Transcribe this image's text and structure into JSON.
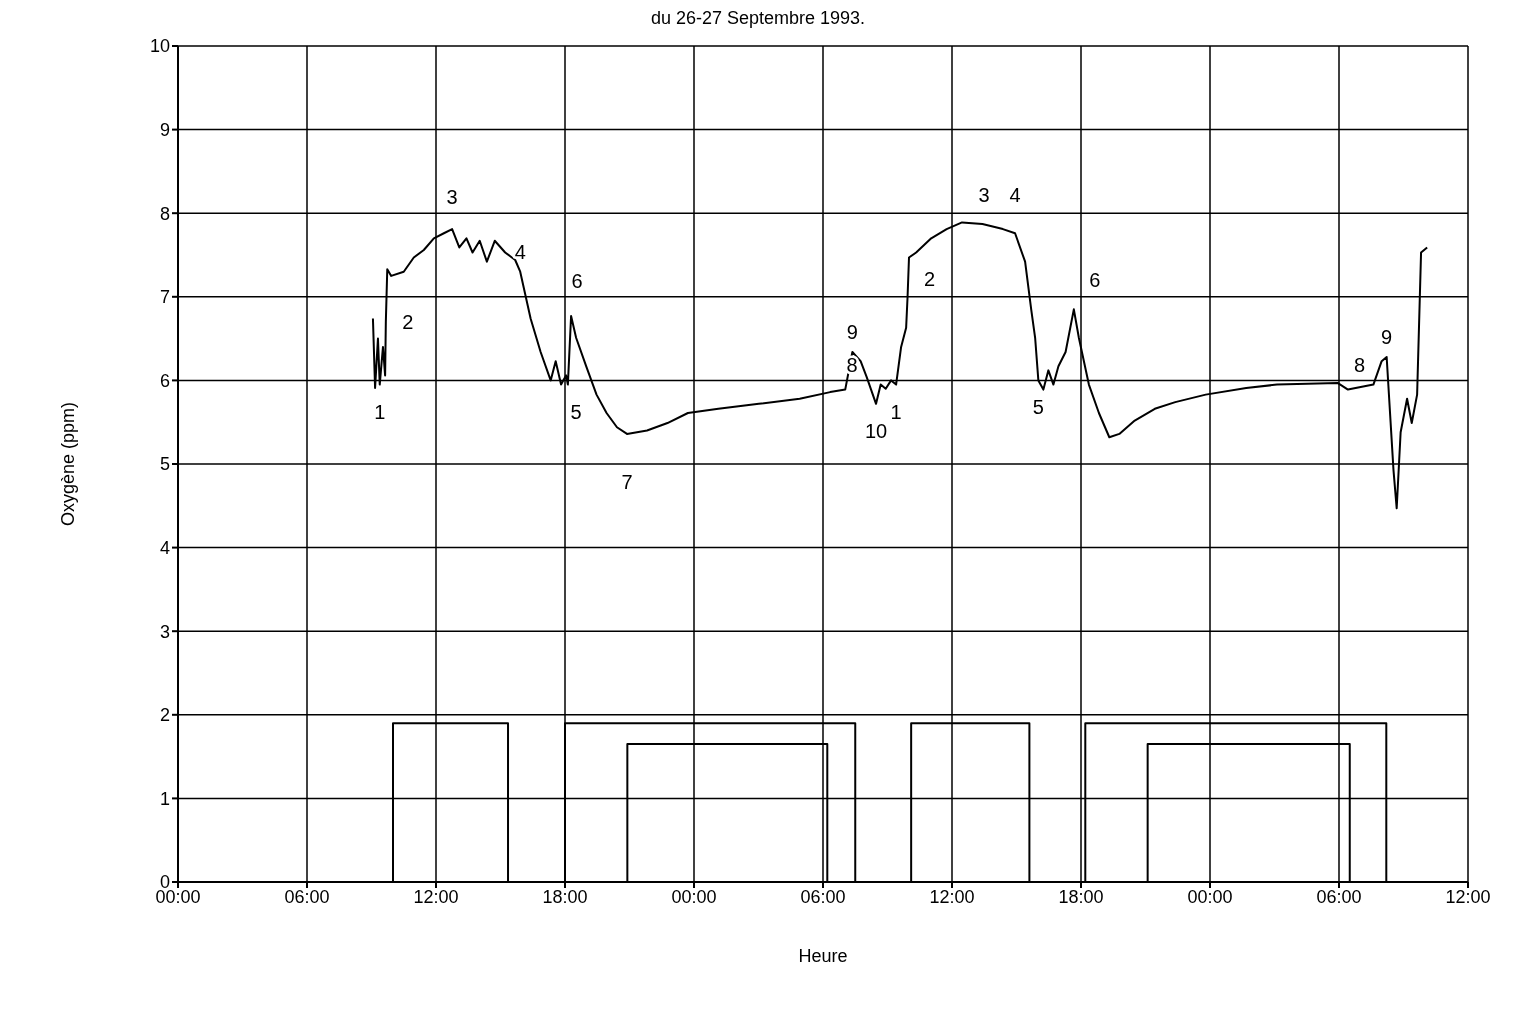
{
  "chart_data": {
    "type": "line",
    "title": "du 26-27 Septembre 1993.",
    "xlabel": "Heure",
    "ylabel": "Oxygène (ppm)",
    "xlim": [
      "1993-09-26T00:00",
      "1993-09-28T12:00"
    ],
    "xticks": [
      {
        "value": "1993-09-26T00:00",
        "label": "00:00"
      },
      {
        "value": "1993-09-26T06:00",
        "label": "06:00"
      },
      {
        "value": "1993-09-26T12:00",
        "label": "12:00"
      },
      {
        "value": "1993-09-26T18:00",
        "label": "18:00"
      },
      {
        "value": "1993-09-27T00:00",
        "label": "00:00"
      },
      {
        "value": "1993-09-27T06:00",
        "label": "06:00"
      },
      {
        "value": "1993-09-27T12:00",
        "label": "12:00"
      },
      {
        "value": "1993-09-27T18:00",
        "label": "18:00"
      },
      {
        "value": "1993-09-28T00:00",
        "label": "00:00"
      },
      {
        "value": "1993-09-28T06:00",
        "label": "06:00"
      },
      {
        "value": "1993-09-28T12:00",
        "label": "12:00"
      }
    ],
    "ylim": [
      0,
      10
    ],
    "yticks": [
      0,
      1,
      2,
      3,
      4,
      5,
      6,
      7,
      8,
      9,
      10
    ],
    "grid": true,
    "marker": "none",
    "line_style": "solid",
    "series": [
      {
        "color": "#000000",
        "x": [
          "1993-09-26T09:04",
          "1993-09-26T09:10",
          "1993-09-26T09:18",
          "1993-09-26T09:23",
          "1993-09-26T09:32",
          "1993-09-26T09:38",
          "1993-09-26T09:40",
          "1993-09-26T09:44",
          "1993-09-26T09:55",
          "1993-09-26T10:30",
          "1993-09-26T10:58",
          "1993-09-26T11:26",
          "1993-09-26T11:54",
          "1993-09-26T12:22",
          "1993-09-26T12:45",
          "1993-09-26T13:05",
          "1993-09-26T13:25",
          "1993-09-26T13:42",
          "1993-09-26T14:02",
          "1993-09-26T14:22",
          "1993-09-26T14:44",
          "1993-09-26T15:13",
          "1993-09-26T15:41",
          "1993-09-26T15:55",
          "1993-09-26T16:24",
          "1993-09-26T16:52",
          "1993-09-26T17:20",
          "1993-09-26T17:34",
          "1993-09-26T17:49",
          "1993-09-26T18:03",
          "1993-09-26T18:08",
          "1993-09-26T18:17",
          "1993-09-26T18:31",
          "1993-09-26T18:59",
          "1993-09-26T19:28",
          "1993-09-26T19:56",
          "1993-09-26T20:25",
          "1993-09-26T20:53",
          "1993-09-26T21:49",
          "1993-09-26T22:46",
          "1993-09-26T23:43",
          "1993-09-27T01:08",
          "1993-09-27T03:01",
          "1993-09-27T04:55",
          "1993-09-27T06:20",
          "1993-09-27T07:02",
          "1993-09-27T07:22",
          "1993-09-27T07:45",
          "1993-09-27T08:02",
          "1993-09-27T08:28",
          "1993-09-27T08:41",
          "1993-09-27T08:55",
          "1993-09-27T09:10",
          "1993-09-27T09:24",
          "1993-09-27T09:38",
          "1993-09-27T09:52",
          "1993-09-27T09:56",
          "1993-09-27T10:00",
          "1993-09-27T10:20",
          "1993-09-27T11:02",
          "1993-09-27T11:45",
          "1993-09-27T12:28",
          "1993-09-27T13:25",
          "1993-09-27T14:22",
          "1993-09-27T14:56",
          "1993-09-27T15:24",
          "1993-09-27T15:41",
          "1993-09-27T15:52",
          "1993-09-27T16:01",
          "1993-09-27T16:15",
          "1993-09-27T16:29",
          "1993-09-27T16:43",
          "1993-09-27T16:57",
          "1993-09-27T17:17",
          "1993-09-27T17:40",
          "1993-09-27T17:54",
          "1993-09-27T18:22",
          "1993-09-27T18:50",
          "1993-09-27T19:19",
          "1993-09-27T19:47",
          "1993-09-27T20:30",
          "1993-09-27T21:26",
          "1993-09-27T22:23",
          "1993-09-27T23:48",
          "1993-09-28T01:41",
          "1993-09-28T03:07",
          "1993-09-28T05:56",
          "1993-09-28T06:25",
          "1993-09-28T07:36",
          "1993-09-28T07:59",
          "1993-09-28T08:13",
          "1993-09-28T08:32",
          "1993-09-28T08:41",
          "1993-09-28T08:52",
          "1993-09-28T09:10",
          "1993-09-28T09:23",
          "1993-09-28T09:38",
          "1993-09-28T09:49",
          "1993-09-28T10:06"
        ],
        "values": [
          6.74,
          5.91,
          6.5,
          5.95,
          6.4,
          6.06,
          6.7,
          7.33,
          7.25,
          7.3,
          7.47,
          7.56,
          7.7,
          7.76,
          7.81,
          7.59,
          7.7,
          7.53,
          7.67,
          7.42,
          7.67,
          7.53,
          7.44,
          7.3,
          6.74,
          6.34,
          6.0,
          6.23,
          5.95,
          6.06,
          5.95,
          6.77,
          6.51,
          6.17,
          5.83,
          5.61,
          5.44,
          5.36,
          5.4,
          5.49,
          5.61,
          5.66,
          5.72,
          5.78,
          5.86,
          5.89,
          6.34,
          6.23,
          6.04,
          5.72,
          5.95,
          5.9,
          6.0,
          5.95,
          6.4,
          6.63,
          7.0,
          7.47,
          7.53,
          7.7,
          7.81,
          7.89,
          7.87,
          7.81,
          7.76,
          7.42,
          6.85,
          6.51,
          6.0,
          5.89,
          6.12,
          5.95,
          6.17,
          6.34,
          6.85,
          6.51,
          5.95,
          5.61,
          5.32,
          5.36,
          5.52,
          5.66,
          5.74,
          5.83,
          5.91,
          5.95,
          5.97,
          5.89,
          5.95,
          6.23,
          6.28,
          4.93,
          4.47,
          5.38,
          5.78,
          5.49,
          5.83,
          7.53,
          7.59
        ]
      },
      {
        "type": "step",
        "color": "#000000",
        "x": [
          "1993-09-26T00:00",
          "1993-09-26T10:00",
          "1993-09-26T15:21",
          "1993-09-26T18:00",
          "1993-09-27T07:30",
          "1993-09-27T10:06",
          "1993-09-27T15:36",
          "1993-09-27T18:12",
          "1993-09-28T08:12",
          "1993-09-28T12:00"
        ],
        "values": [
          0,
          1.9,
          0,
          1.9,
          0,
          1.9,
          0,
          1.9,
          0,
          0
        ]
      },
      {
        "type": "step",
        "color": "#000000",
        "x": [
          "1993-09-26T00:00",
          "1993-09-26T20:54",
          "1993-09-27T06:12",
          "1993-09-27T21:06",
          "1993-09-28T06:30",
          "1993-09-28T12:00"
        ],
        "values": [
          0,
          1.65,
          0,
          1.65,
          0,
          0
        ]
      }
    ],
    "annotations": [
      {
        "text": "1",
        "x": "1993-09-26T09:23",
        "y": 5.95
      },
      {
        "text": "2",
        "x": "1993-09-26T09:40",
        "y": 6.7
      },
      {
        "text": "3",
        "x": "1993-09-26T12:45",
        "y": 7.81
      },
      {
        "text": "4",
        "x": "1993-09-26T15:55",
        "y": 7.3
      },
      {
        "text": "5",
        "x": "1993-09-26T17:49",
        "y": 5.95
      },
      {
        "text": "6",
        "x": "1993-09-26T18:17",
        "y": 6.77
      },
      {
        "text": "7",
        "x": "1993-09-26T20:53",
        "y": 5.36
      },
      {
        "text": "8",
        "x": "1993-09-27T06:20",
        "y": 5.86
      },
      {
        "text": "9",
        "x": "1993-09-27T07:22",
        "y": 6.34
      },
      {
        "text": "10",
        "x": "1993-09-27T08:28",
        "y": 5.72
      },
      {
        "text": "1",
        "x": "1993-09-27T09:24",
        "y": 5.95
      },
      {
        "text": "2",
        "x": "1993-09-27T09:56",
        "y": 7.0
      },
      {
        "text": "3",
        "x": "1993-09-27T12:28",
        "y": 7.89
      },
      {
        "text": "4",
        "x": "1993-09-27T14:56",
        "y": 7.76
      },
      {
        "text": "5",
        "x": "1993-09-27T16:01",
        "y": 6.0
      },
      {
        "text": "6",
        "x": "1993-09-27T17:40",
        "y": 6.85
      },
      {
        "text": "8",
        "x": "1993-09-28T05:56",
        "y": 5.97
      },
      {
        "text": "9",
        "x": "1993-09-28T08:13",
        "y": 6.28
      }
    ]
  }
}
